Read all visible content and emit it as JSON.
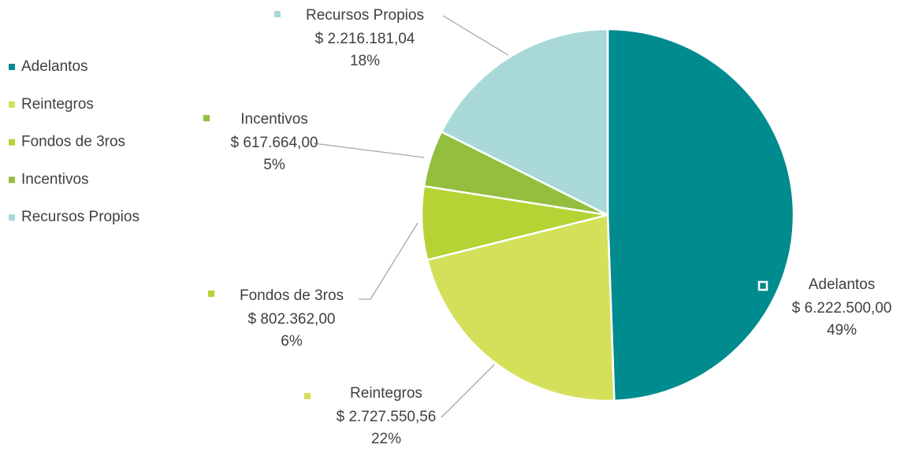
{
  "chart_data": {
    "type": "pie",
    "categories": [
      "Adelantos",
      "Reintegros",
      "Fondos de 3ros",
      "Incentivos",
      "Recursos Propios"
    ],
    "values": [
      6222500.0,
      2727550.56,
      802362.0,
      617664.0,
      2216181.04
    ],
    "value_labels": [
      "$ 6.222.500,00",
      "$ 2.727.550,56",
      "$ 802.362,00",
      "$ 617.664,00",
      "$ 2.216.181,04"
    ],
    "percent_labels": [
      "49%",
      "22%",
      "6%",
      "5%",
      "18%"
    ],
    "colors": [
      "#008b8f",
      "#d4e05a",
      "#b5d334",
      "#93be3e",
      "#a9d8d8"
    ],
    "legend": "left"
  }
}
